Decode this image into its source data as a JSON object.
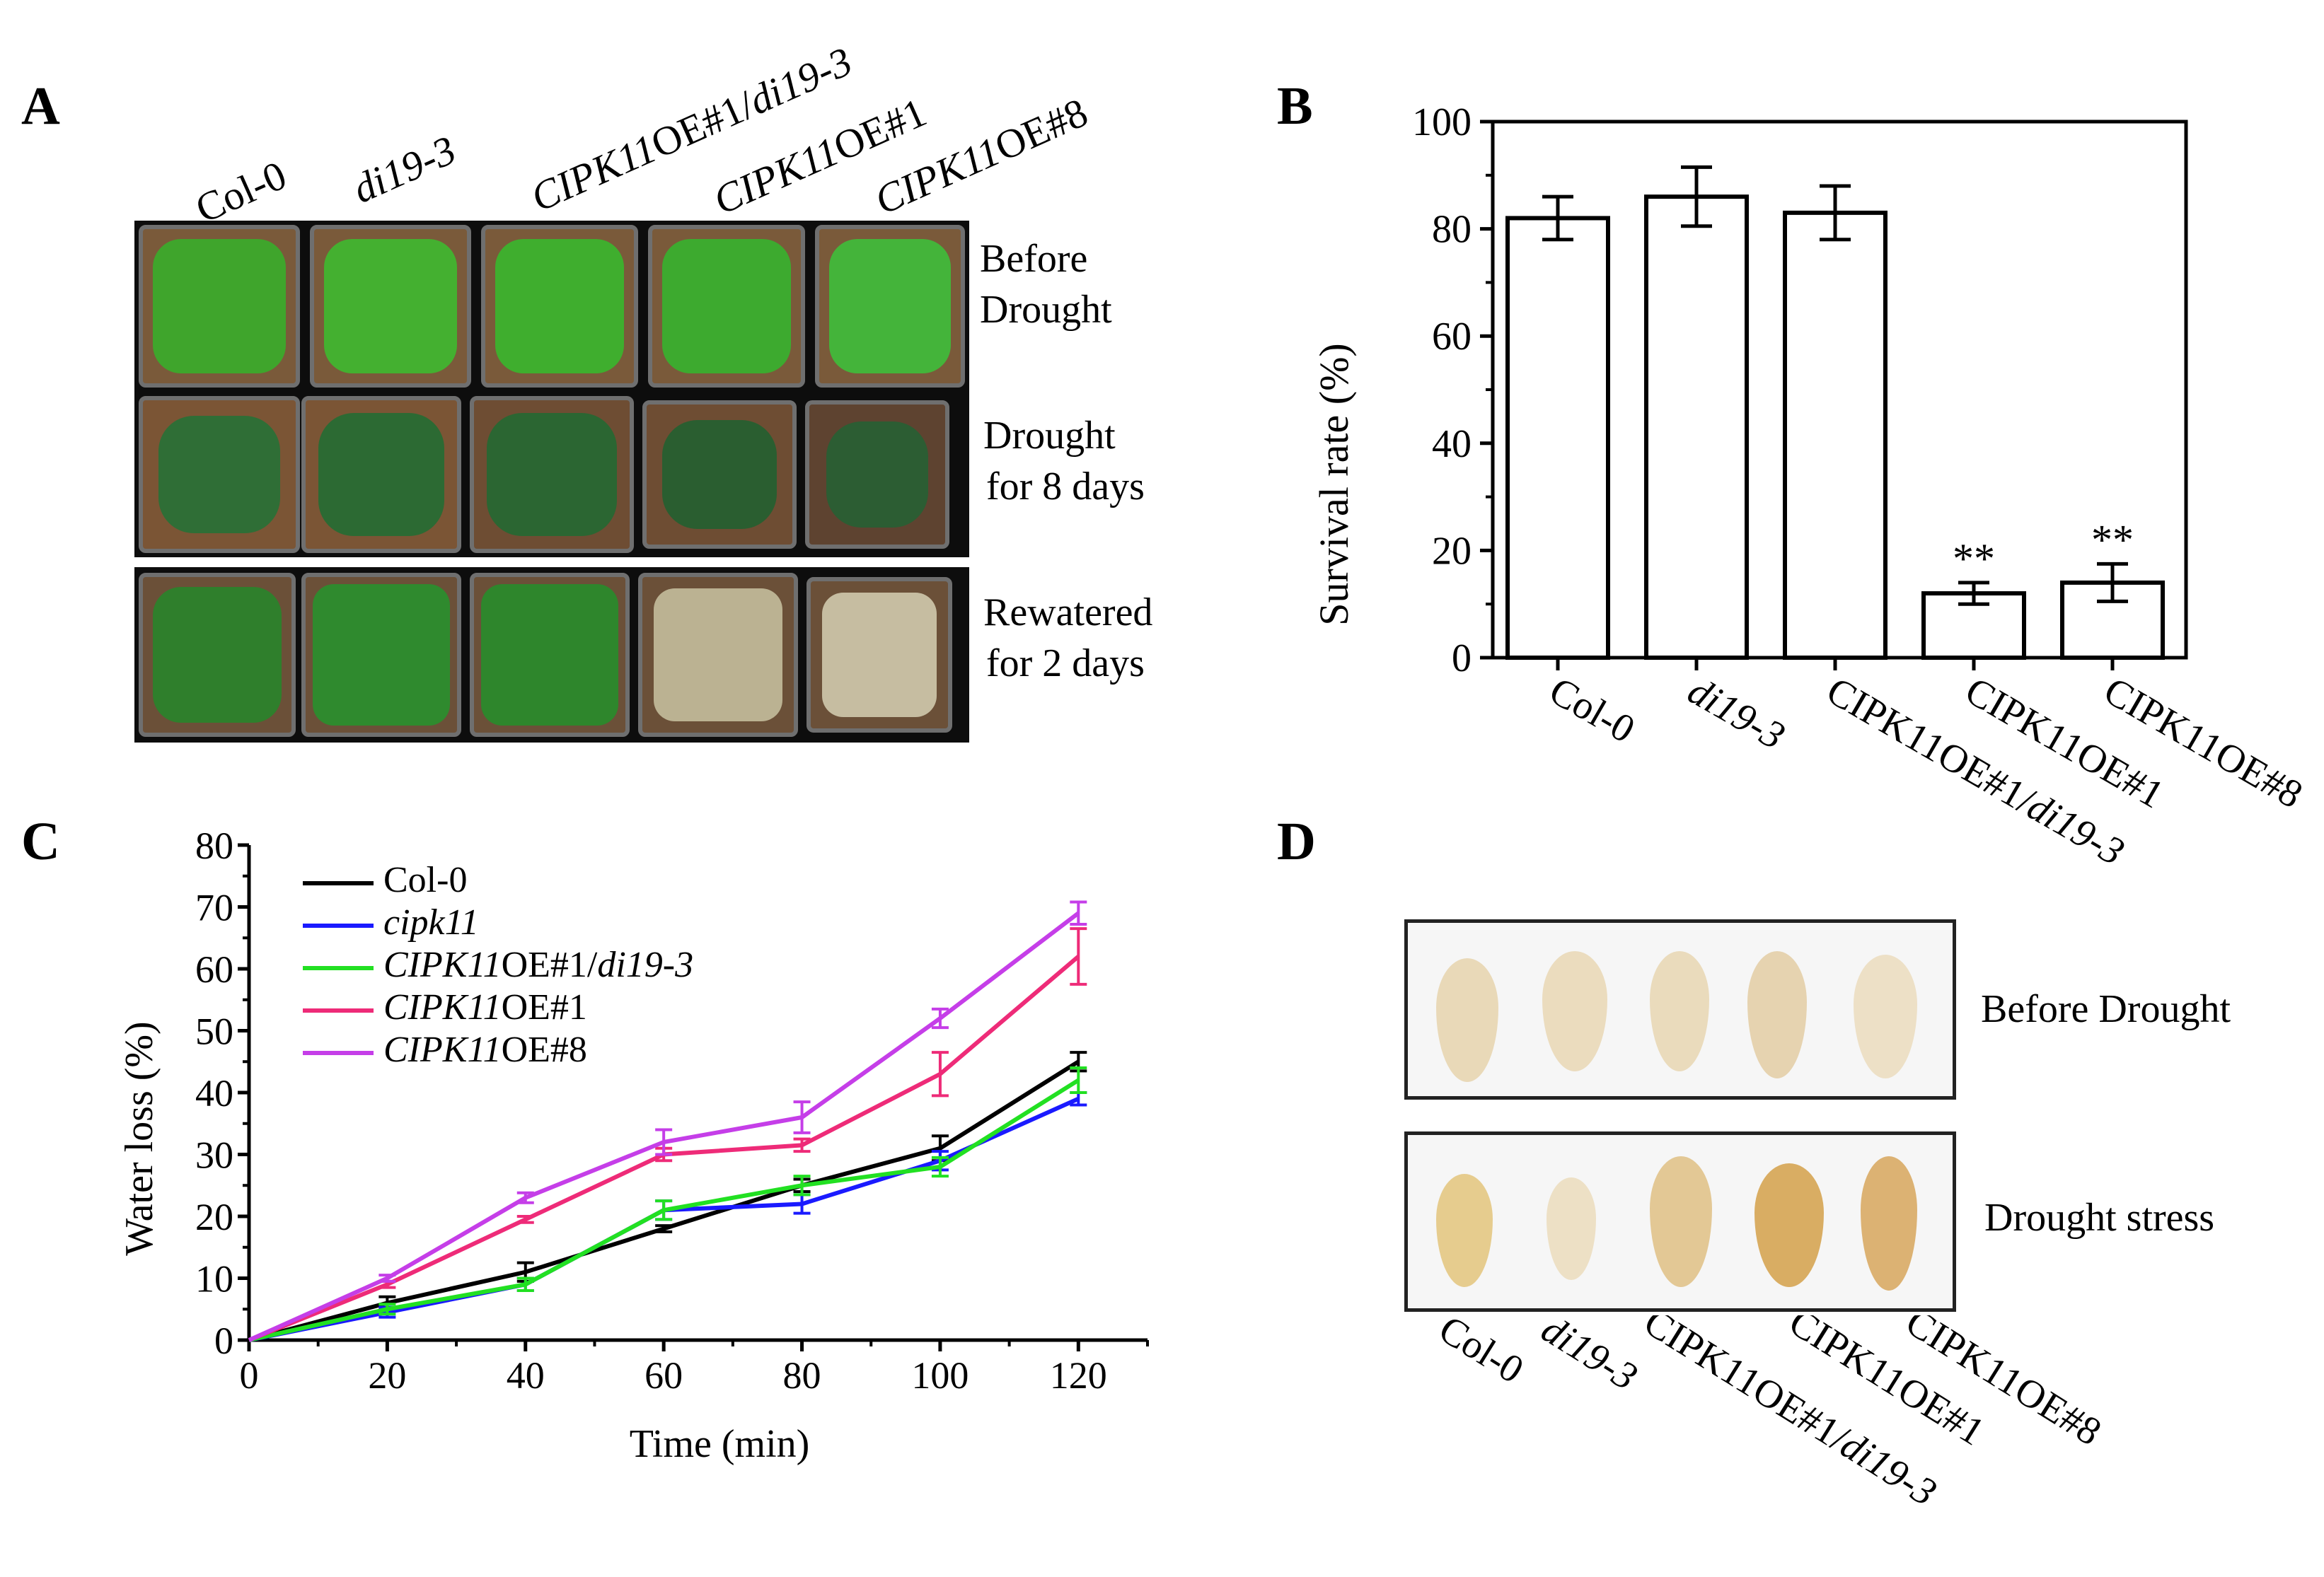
{
  "panel_a": {
    "letter": "A",
    "genotypes": [
      {
        "plain": "Col-0",
        "italic": "",
        "suffix": ""
      },
      {
        "plain": "",
        "italic": "di19-3",
        "suffix": ""
      },
      {
        "plain": "",
        "italic": "CIPK11",
        "suffix": "OE#1/",
        "italic2": "di19-3"
      },
      {
        "plain": "",
        "italic": "CIPK11",
        "suffix": "OE#1"
      },
      {
        "plain": "",
        "italic": "CIPK11",
        "suffix": "OE#8"
      }
    ],
    "rows": [
      {
        "line1": "Before",
        "line2": "Drought"
      },
      {
        "line1": "Drought",
        "line2": "for 8 days"
      },
      {
        "line1": "Rewatered",
        "line2": "for 2 days"
      }
    ],
    "plant_states": [
      [
        "#3fa52c",
        "#44b030",
        "#3fae2e",
        "#3daa2f",
        "#44b43a"
      ],
      [
        "#2f6e36",
        "#2c6a33",
        "#2b6632",
        "#2a5e30",
        "#2c5d33"
      ],
      [
        "#2f7f2c",
        "#2f8a2e",
        "#2e862c",
        "#c9c3a2",
        "#d6d0b4"
      ]
    ]
  },
  "panel_b": {
    "letter": "B",
    "chart_data": {
      "type": "bar",
      "categories": [
        "Col-0",
        "di19-3",
        "CIPK11OE#1/di19-3",
        "CIPK11OE#1",
        "CIPK11OE#8"
      ],
      "values": [
        82,
        86,
        83,
        12,
        14
      ],
      "errors": [
        4,
        5.5,
        5,
        2,
        3.5
      ],
      "significance": [
        "",
        "",
        "",
        "**",
        "**"
      ],
      "ylabel": "Survival rate (%)",
      "ylim": [
        0,
        100
      ],
      "yticks": [
        0,
        20,
        40,
        60,
        80,
        100
      ]
    }
  },
  "panel_c": {
    "letter": "C",
    "chart_data": {
      "type": "line",
      "x": [
        0,
        20,
        40,
        60,
        80,
        100,
        120
      ],
      "xlabel": "Time (min)",
      "ylabel": "Water loss (%)",
      "xlim": [
        0,
        130
      ],
      "ylim": [
        0,
        80
      ],
      "xticks": [
        0,
        20,
        40,
        60,
        80,
        100,
        120
      ],
      "yticks": [
        0,
        10,
        20,
        30,
        40,
        50,
        60,
        70,
        80
      ],
      "series": [
        {
          "name": "Col-0",
          "label_italic": "",
          "label_plain": "Col-0",
          "label_italic2": "",
          "color": "#000000",
          "values": [
            0,
            6,
            11,
            18,
            25,
            31,
            45
          ],
          "errors": [
            0,
            1,
            1.5,
            0.5,
            1,
            2,
            1.5
          ]
        },
        {
          "name": "cipk11",
          "label_italic": "cipk11",
          "label_plain": "",
          "label_italic2": "",
          "color": "#1a1aff",
          "values": [
            0,
            4.5,
            9,
            21,
            22,
            29,
            39
          ],
          "errors": [
            0,
            0.8,
            1,
            1.5,
            1.5,
            1.5,
            1
          ]
        },
        {
          "name": "CIPK11OE#1/di19-3",
          "label_italic": "CIPK11",
          "label_plain": "OE#1/",
          "label_italic2": "di19-3",
          "color": "#22e022",
          "values": [
            0,
            5,
            9,
            21,
            25,
            28,
            42
          ],
          "errors": [
            0,
            0.8,
            1,
            1.5,
            1.5,
            1.5,
            2
          ]
        },
        {
          "name": "CIPK11OE#1",
          "label_italic": "CIPK11",
          "label_plain": "OE#1",
          "label_italic2": "",
          "color": "#ee2b78",
          "values": [
            0,
            9,
            19.5,
            30,
            31.5,
            43,
            62
          ],
          "errors": [
            0,
            0.5,
            0.5,
            1,
            1,
            3.5,
            4.5
          ]
        },
        {
          "name": "CIPK11OE#8",
          "label_italic": "CIPK11",
          "label_plain": "OE#8",
          "label_italic2": "",
          "color": "#c53ee8",
          "values": [
            0,
            10,
            23,
            32,
            36,
            52,
            69
          ],
          "errors": [
            0,
            0.5,
            0.8,
            2,
            2.5,
            1.5,
            1.8
          ]
        }
      ]
    }
  },
  "panel_d": {
    "letter": "D",
    "rows": [
      "Before Drought",
      "Drought stress"
    ],
    "genotypes": [
      {
        "plain": "Col-0",
        "italic": "",
        "suffix": ""
      },
      {
        "plain": "",
        "italic": "di19-3",
        "suffix": ""
      },
      {
        "plain": "CIPK11OE#1/",
        "italic": "di19-3",
        "suffix": ""
      },
      {
        "plain": "CIPK11OE#1",
        "italic": "",
        "suffix": ""
      },
      {
        "plain": "CIPK11OE#8",
        "italic": "",
        "suffix": ""
      }
    ],
    "leaf_stain": [
      [
        "#e9d9b8",
        "#ebdcbe",
        "#eadbbc",
        "#e6d3b0",
        "#ede0c6"
      ],
      [
        "#e6cc8e",
        "#ede0c5",
        "#e3c895",
        "#d9ad63",
        "#dcb273"
      ]
    ]
  }
}
